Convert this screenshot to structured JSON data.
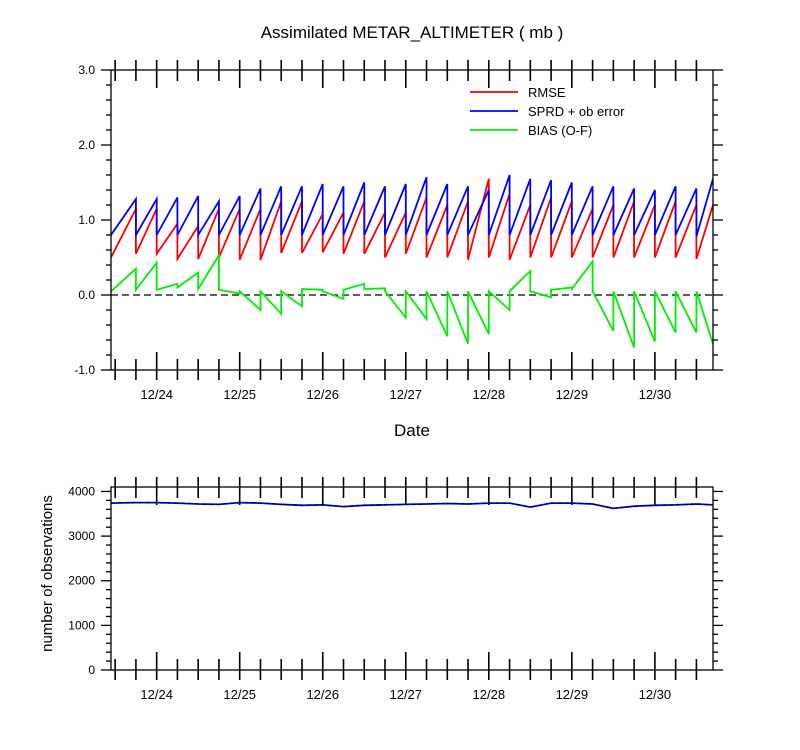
{
  "chart_data": [
    {
      "type": "line",
      "title": "Assimilated METAR_ALTIMETER ( mb )",
      "xlabel": "Date",
      "ylabel": "",
      "ylim": [
        -1.0,
        3.0
      ],
      "yticks": [
        -1.0,
        0.0,
        1.0,
        2.0,
        3.0
      ],
      "ytick_labels": [
        "-1.0",
        "0.0",
        "1.0",
        "2.0",
        "3.0"
      ],
      "xlim": [
        23.45,
        30.7
      ],
      "xticks": [
        24,
        25,
        26,
        27,
        28,
        29,
        30
      ],
      "xtick_labels": [
        "12/24",
        "12/25",
        "12/26",
        "12/27",
        "12/28",
        "12/29",
        "12/30"
      ],
      "zero_line": "dashed",
      "legend_position": "top-right",
      "series": [
        {
          "name": "RMSE",
          "color": "#ff0000",
          "x": [
            23.45,
            23.75,
            23.75,
            24.0,
            24.0,
            24.25,
            24.25,
            24.5,
            24.5,
            24.75,
            24.75,
            25.0,
            25.0,
            25.25,
            25.25,
            25.5,
            25.5,
            25.75,
            25.75,
            26.0,
            26.0,
            26.25,
            26.25,
            26.5,
            26.5,
            26.75,
            26.75,
            27.0,
            27.0,
            27.25,
            27.25,
            27.5,
            27.5,
            27.75,
            27.75,
            28.0,
            28.0,
            28.25,
            28.25,
            28.5,
            28.5,
            28.75,
            28.75,
            29.0,
            29.0,
            29.25,
            29.25,
            29.5,
            29.5,
            29.75,
            29.75,
            30.0,
            30.0,
            30.25,
            30.25,
            30.5,
            30.5,
            30.7
          ],
          "y": [
            0.5,
            1.15,
            0.55,
            1.15,
            0.55,
            0.95,
            0.48,
            0.92,
            0.48,
            1.15,
            0.5,
            1.15,
            0.47,
            1.15,
            0.47,
            1.25,
            0.56,
            1.25,
            0.56,
            1.08,
            0.57,
            1.1,
            0.55,
            1.25,
            0.55,
            1.1,
            0.5,
            1.1,
            0.55,
            1.3,
            0.5,
            1.2,
            0.5,
            1.25,
            0.47,
            1.55,
            0.5,
            1.35,
            0.47,
            1.2,
            0.5,
            1.3,
            0.5,
            1.25,
            0.5,
            1.15,
            0.5,
            1.2,
            0.5,
            1.25,
            0.5,
            1.2,
            0.5,
            1.25,
            0.5,
            1.2,
            0.48,
            1.2
          ]
        },
        {
          "name": "SPRD + ob error",
          "color": "#0000ff",
          "x": [
            23.45,
            23.75,
            23.75,
            24.0,
            24.0,
            24.25,
            24.25,
            24.5,
            24.5,
            24.75,
            24.75,
            25.0,
            25.0,
            25.25,
            25.25,
            25.5,
            25.5,
            25.75,
            25.75,
            26.0,
            26.0,
            26.25,
            26.25,
            26.5,
            26.5,
            26.75,
            26.75,
            27.0,
            27.0,
            27.25,
            27.25,
            27.5,
            27.5,
            27.75,
            27.75,
            28.0,
            28.0,
            28.25,
            28.25,
            28.5,
            28.5,
            28.75,
            28.75,
            29.0,
            29.0,
            29.25,
            29.25,
            29.5,
            29.5,
            29.75,
            29.75,
            30.0,
            30.0,
            30.25,
            30.25,
            30.5,
            30.5,
            30.7
          ],
          "y": [
            0.8,
            1.28,
            0.8,
            1.28,
            0.8,
            1.3,
            0.8,
            1.32,
            0.8,
            1.25,
            0.8,
            1.32,
            0.8,
            1.42,
            0.8,
            1.45,
            0.8,
            1.45,
            0.8,
            1.48,
            0.8,
            1.45,
            0.8,
            1.5,
            0.8,
            1.45,
            0.8,
            1.48,
            0.8,
            1.57,
            0.8,
            1.48,
            0.8,
            1.45,
            0.8,
            1.4,
            0.8,
            1.6,
            0.8,
            1.55,
            0.8,
            1.53,
            0.8,
            1.5,
            0.8,
            1.45,
            0.8,
            1.45,
            0.8,
            1.42,
            0.8,
            1.4,
            0.8,
            1.45,
            0.8,
            1.42,
            0.78,
            1.55
          ]
        },
        {
          "name": "BIAS (O-F)",
          "color": "#00ee00",
          "x": [
            23.45,
            23.75,
            23.75,
            24.0,
            24.0,
            24.25,
            24.25,
            24.5,
            24.5,
            24.75,
            24.75,
            25.0,
            25.0,
            25.25,
            25.25,
            25.5,
            25.5,
            25.75,
            25.75,
            26.0,
            26.0,
            26.25,
            26.25,
            26.5,
            26.5,
            26.75,
            26.75,
            27.0,
            27.0,
            27.25,
            27.25,
            27.5,
            27.5,
            27.75,
            27.75,
            28.0,
            28.0,
            28.25,
            28.25,
            28.5,
            28.5,
            28.75,
            28.75,
            29.0,
            29.0,
            29.25,
            29.25,
            29.5,
            29.5,
            29.75,
            29.75,
            30.0,
            30.0,
            30.25,
            30.25,
            30.5,
            30.5,
            30.7
          ],
          "y": [
            0.05,
            0.35,
            0.07,
            0.43,
            0.07,
            0.15,
            0.1,
            0.3,
            0.08,
            0.53,
            0.07,
            0.02,
            0.05,
            -0.2,
            0.05,
            -0.25,
            0.05,
            -0.15,
            0.08,
            0.07,
            0.05,
            -0.05,
            0.07,
            0.15,
            0.08,
            0.09,
            0.05,
            -0.3,
            0.05,
            -0.32,
            0.05,
            -0.55,
            0.05,
            -0.65,
            0.05,
            -0.52,
            0.05,
            -0.2,
            0.05,
            0.32,
            0.05,
            -0.03,
            0.07,
            0.1,
            0.08,
            0.45,
            0.05,
            -0.48,
            0.05,
            -0.7,
            0.05,
            -0.62,
            0.05,
            -0.5,
            0.05,
            -0.5,
            0.05,
            -0.65
          ]
        }
      ]
    },
    {
      "type": "line",
      "title": "",
      "xlabel": "",
      "ylabel": "number of observations",
      "ylim": [
        0,
        4100
      ],
      "yticks": [
        0,
        1000,
        2000,
        3000,
        4000
      ],
      "ytick_labels": [
        "0",
        "1000",
        "2000",
        "3000",
        "4000"
      ],
      "xlim": [
        23.45,
        30.7
      ],
      "xticks": [
        24,
        25,
        26,
        27,
        28,
        29,
        30
      ],
      "xtick_labels": [
        "12/24",
        "12/25",
        "12/26",
        "12/27",
        "12/28",
        "12/29",
        "12/30"
      ],
      "series": [
        {
          "name": "",
          "color": "#0000ff",
          "x": [
            23.45,
            23.75,
            24.0,
            24.25,
            24.5,
            24.75,
            25.0,
            25.25,
            25.5,
            25.75,
            26.0,
            26.25,
            26.5,
            26.75,
            27.0,
            27.25,
            27.5,
            27.75,
            28.0,
            28.25,
            28.5,
            28.75,
            29.0,
            29.25,
            29.5,
            29.75,
            30.0,
            30.25,
            30.5,
            30.7
          ],
          "y": [
            3740,
            3750,
            3750,
            3740,
            3720,
            3710,
            3750,
            3740,
            3710,
            3690,
            3700,
            3660,
            3690,
            3700,
            3710,
            3720,
            3730,
            3720,
            3740,
            3740,
            3650,
            3740,
            3740,
            3720,
            3620,
            3670,
            3690,
            3700,
            3720,
            3700
          ]
        },
        {
          "name": "",
          "color": "#000000",
          "dashed": true,
          "x": [
            23.45,
            23.75,
            24.0,
            24.25,
            24.5,
            24.75,
            25.0,
            25.25,
            25.5,
            25.75,
            26.0,
            26.25,
            26.5,
            26.75,
            27.0,
            27.25,
            27.5,
            27.75,
            28.0,
            28.25,
            28.5,
            28.75,
            29.0,
            29.25,
            29.5,
            29.75,
            30.0,
            30.25,
            30.5,
            30.7
          ],
          "y": [
            3740,
            3750,
            3750,
            3740,
            3720,
            3710,
            3750,
            3740,
            3710,
            3690,
            3700,
            3660,
            3690,
            3700,
            3710,
            3720,
            3730,
            3720,
            3740,
            3740,
            3650,
            3740,
            3740,
            3720,
            3620,
            3670,
            3690,
            3700,
            3720,
            3700
          ]
        }
      ]
    }
  ]
}
